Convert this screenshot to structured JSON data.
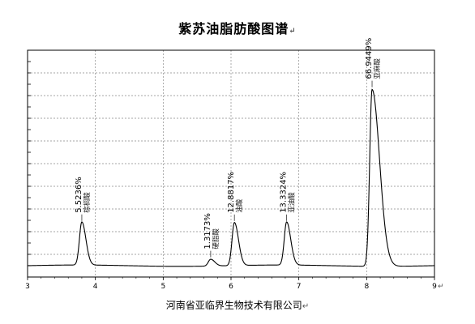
{
  "title": "紫苏油脂肪酸图谱",
  "return_mark": "↵",
  "footer": "河南省亚临界生物技术有限公司",
  "chart_data": {
    "type": "line",
    "title": "紫苏油脂肪酸图谱",
    "xlabel": "",
    "ylabel": "",
    "xlim": [
      3,
      9
    ],
    "ylim": [
      0,
      100
    ],
    "x_ticks": [
      "3",
      "4",
      "5",
      "6",
      "7",
      "8",
      "9"
    ],
    "grid": true,
    "baseline": 5,
    "peaks": [
      {
        "x": 3.8,
        "height": 19,
        "percent": "5.5236%",
        "name": "棕榈酸"
      },
      {
        "x": 5.7,
        "height": 3,
        "percent": "1.3173%",
        "name": "硬脂酸"
      },
      {
        "x": 6.05,
        "height": 19,
        "percent": "12.8817%",
        "name": "油酸"
      },
      {
        "x": 6.82,
        "height": 19,
        "percent": "13.3324%",
        "name": "亚油酸"
      },
      {
        "x": 8.08,
        "height": 78,
        "percent": "66.9449%",
        "name": "亚麻酸"
      }
    ]
  }
}
